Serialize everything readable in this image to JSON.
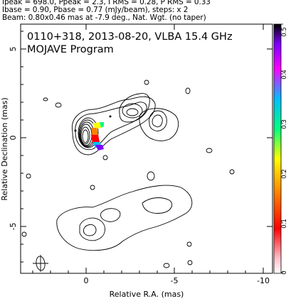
{
  "header": {
    "line1": "Ipeak = 698.0, Ppeak = 2.3, I RMS = 0.28, P RMS = 0.33",
    "line2": "Ibase = 0.90, Pbase = 0.77 (mJy/beam), steps: x 2",
    "line3": "Beam: 0.80x0.46 mas at -7.9 deg., Nat. Wgt. (no taper)"
  },
  "plot": {
    "title": "0110+318, 2013-08-20, VLBA 15.4 GHz",
    "subtitle": "MOJAVE Program",
    "xlabel": "Relative R.A. (mas)",
    "ylabel": "Relative Declination (mas)",
    "x_ticks": [
      "0",
      "-5",
      "-10"
    ],
    "y_ticks": [
      "5",
      "0",
      "-5"
    ]
  },
  "colorbar": {
    "ticks": [
      "0.5",
      "0.4",
      "0.3",
      "0.2",
      "0.1",
      "0"
    ],
    "colors": [
      "#000000",
      "#7f00ff",
      "#ff00ff",
      "#00bfff",
      "#00ff80",
      "#ffff00",
      "#ff8000",
      "#ff0000",
      "#ffc0cb",
      "#ffffff"
    ]
  }
}
